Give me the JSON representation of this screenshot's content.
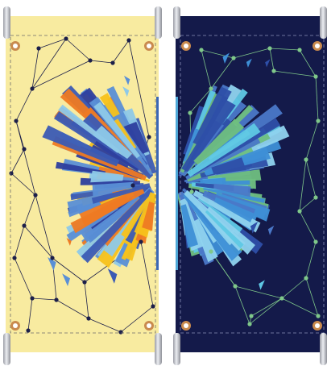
{
  "banners": [
    {
      "id": "left",
      "background": "#F8EBA0",
      "line_color": "#1C1F4A",
      "node_color": "#1C1F4A",
      "palette": [
        "#F7C21B",
        "#EE7A23",
        "#2D3E9E",
        "#5A8FD6",
        "#8EC9E8",
        "#3B5BB4"
      ]
    },
    {
      "id": "right",
      "background": "#141A4A",
      "line_color": "#7FC88A",
      "node_color": "#7FC88A",
      "palette": [
        "#3E8FD6",
        "#5FC8E4",
        "#6FBF80",
        "#2E4FA8",
        "#4A78C8",
        "#8FD3EE"
      ]
    }
  ],
  "hardware": {
    "grommet_color": "#C98A4E",
    "pole_color": "#C8CAD0"
  }
}
